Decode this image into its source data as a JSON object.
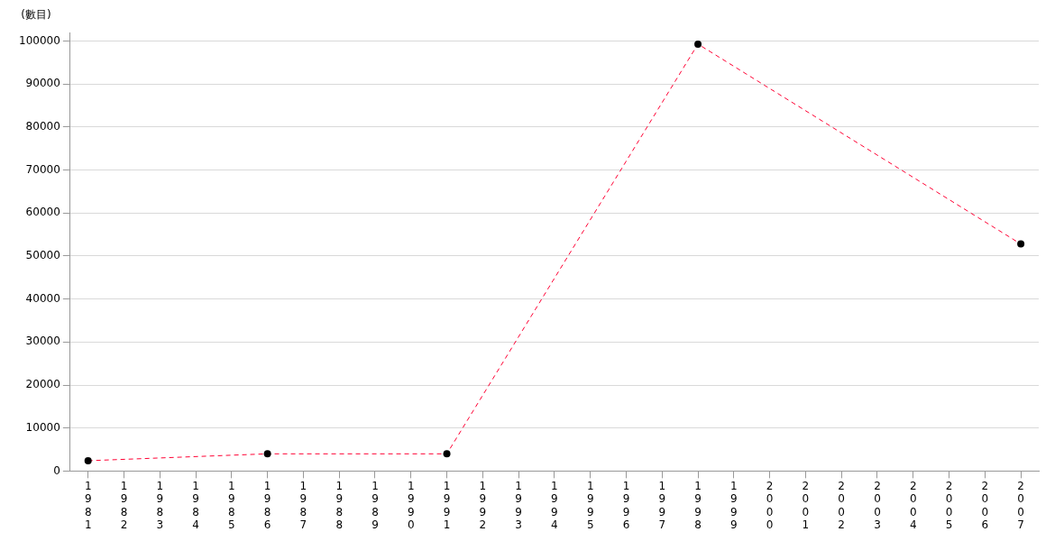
{
  "chart_data": {
    "type": "line",
    "ylabel": "(數目)",
    "categories": [
      "1981",
      "1982",
      "1983",
      "1984",
      "1985",
      "1986",
      "1987",
      "1988",
      "1989",
      "1990",
      "1991",
      "1992",
      "1993",
      "1994",
      "1995",
      "1996",
      "1997",
      "1998",
      "1999",
      "2000",
      "2001",
      "2002",
      "2003",
      "2004",
      "2005",
      "2006",
      "2007"
    ],
    "series": [
      {
        "color": "#ff0033",
        "values": [
          2400,
          null,
          null,
          null,
          null,
          4000,
          null,
          null,
          null,
          null,
          4000,
          null,
          null,
          null,
          null,
          null,
          null,
          99300,
          null,
          null,
          null,
          null,
          null,
          null,
          null,
          null,
          52800
        ]
      }
    ],
    "ylim": [
      0,
      102000
    ],
    "yticks": [
      0,
      10000,
      20000,
      30000,
      40000,
      50000,
      60000,
      70000,
      80000,
      90000,
      100000
    ],
    "grid": "y",
    "legend": false,
    "marker": "circle",
    "line_style": "dashed"
  }
}
